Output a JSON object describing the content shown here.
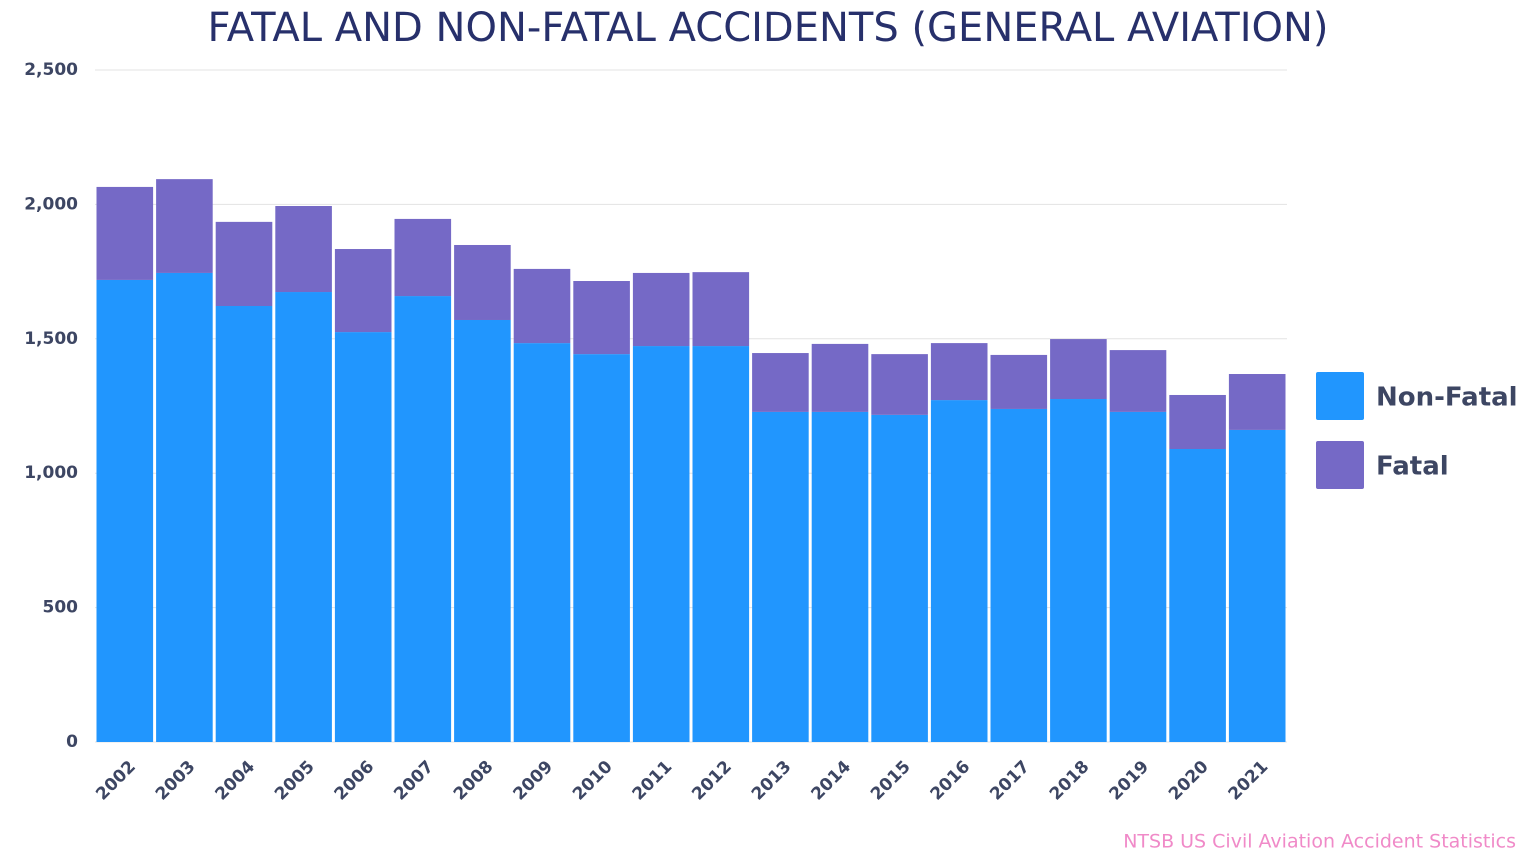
{
  "chart_data": {
    "type": "stacked_bar",
    "title": "FATAL AND NON-FATAL ACCIDENTS (GENERAL AVIATION)",
    "source": "NTSB US Civil Aviation Accident Statistics",
    "categories": [
      "2002",
      "2003",
      "2004",
      "2005",
      "2006",
      "2007",
      "2008",
      "2009",
      "2010",
      "2011",
      "2012",
      "2013",
      "2014",
      "2015",
      "2016",
      "2017",
      "2018",
      "2019",
      "2020",
      "2021"
    ],
    "series": [
      {
        "name": "Non-Fatal",
        "color": "#2196fe",
        "values": [
          1719,
          1745,
          1622,
          1674,
          1525,
          1659,
          1570,
          1484,
          1443,
          1473,
          1473,
          1228,
          1228,
          1217,
          1272,
          1239,
          1276,
          1228,
          1090,
          1161
        ]
      },
      {
        "name": "Fatal",
        "color": "#7569c6",
        "values": [
          346,
          349,
          313,
          320,
          309,
          287,
          279,
          276,
          272,
          272,
          275,
          219,
          253,
          226,
          212,
          201,
          223,
          230,
          201,
          208
        ]
      }
    ],
    "ylim": [
      0,
      2500
    ],
    "yticks": [
      0,
      500,
      {
        "value": 1000,
        "label": "1,000"
      },
      {
        "value": 1500,
        "label": "1,500"
      },
      {
        "value": 2000,
        "label": "2,000"
      },
      {
        "value": 2500,
        "label": "2,500"
      }
    ],
    "grid": true,
    "legend": "right"
  }
}
